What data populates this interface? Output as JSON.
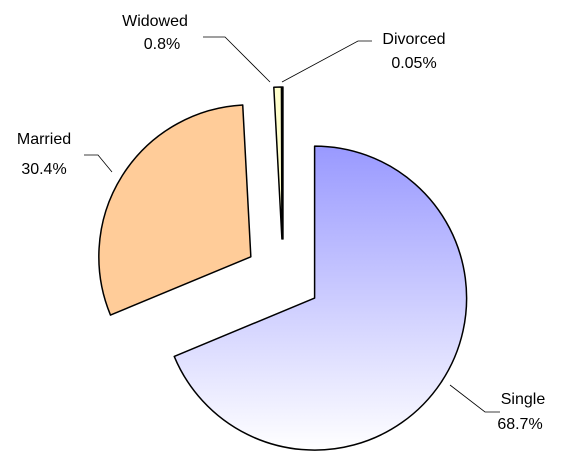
{
  "chart_data": {
    "type": "pie",
    "categories": [
      "Single",
      "Married",
      "Widowed",
      "Divorced"
    ],
    "values": [
      68.7,
      30.4,
      0.8,
      0.05
    ],
    "value_labels": [
      "68.7%",
      "30.4%",
      "0.8%",
      "0.05%"
    ],
    "colors": [
      "#9999ff",
      "#ffcc99",
      "#ffffcc",
      "#ffffcc"
    ]
  }
}
